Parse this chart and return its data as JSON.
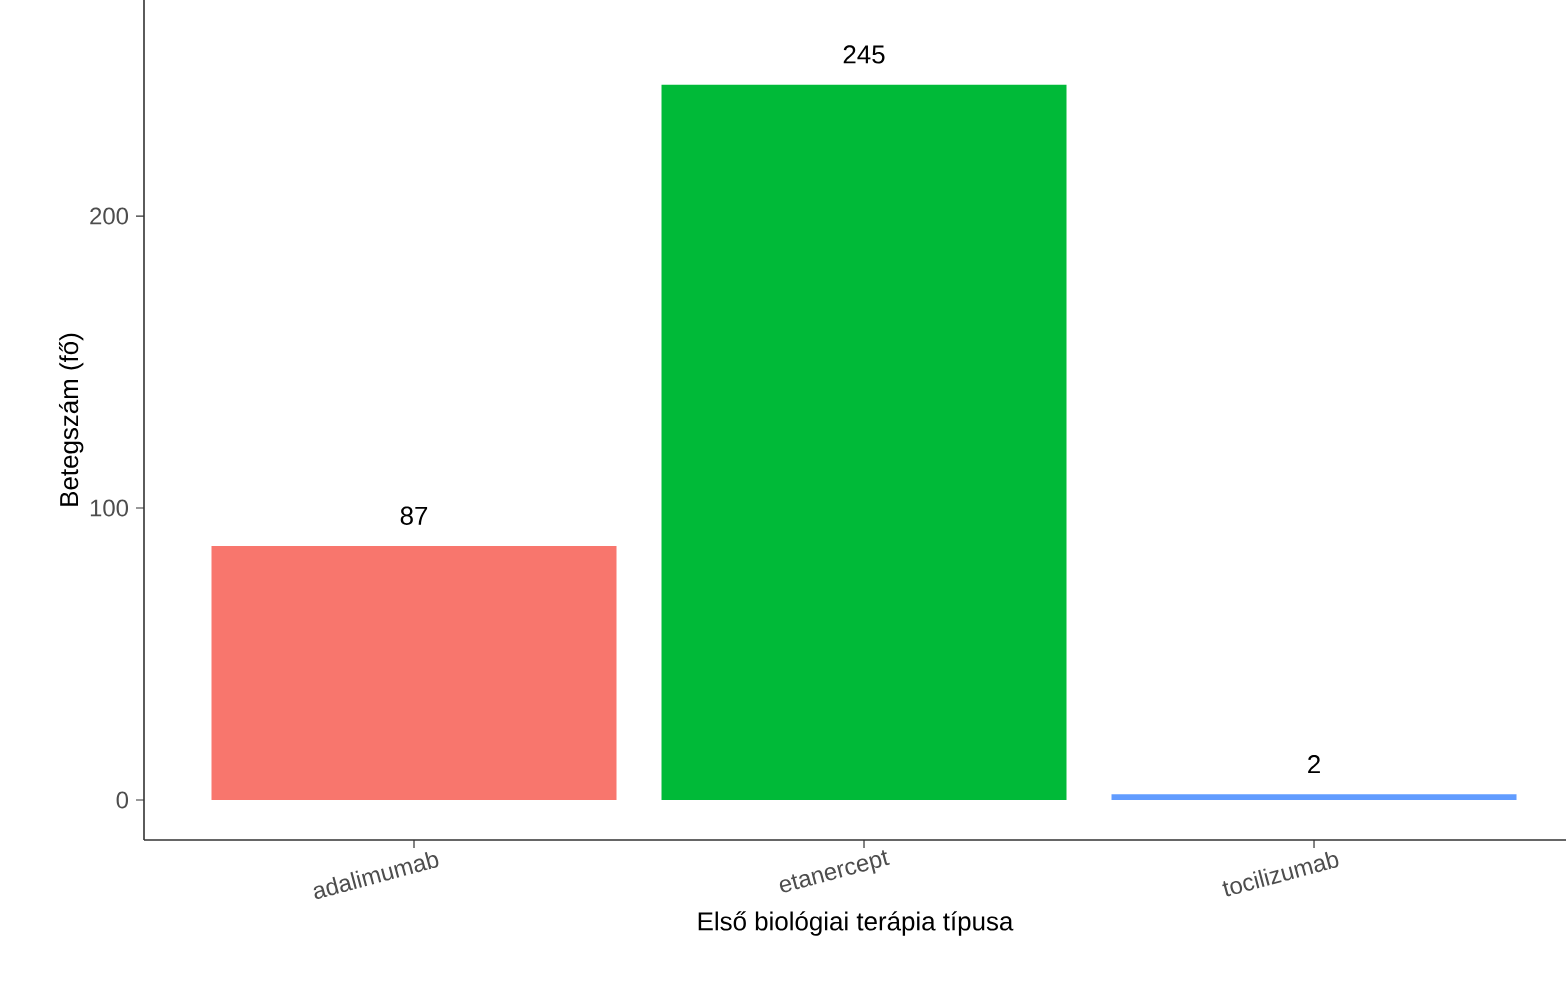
{
  "chart_data": {
    "type": "bar",
    "xlabel": "Első biológiai terápia típusa",
    "ylabel": "Betegszám (fő)",
    "categories": [
      "adalimumab",
      "etanercept",
      "tocilizumab"
    ],
    "values": [
      87,
      245,
      2
    ],
    "colors": [
      "#f8766d",
      "#00ba38",
      "#619cff"
    ],
    "ylim": [
      -13.7,
      274
    ],
    "yticks": [
      0,
      100,
      200
    ],
    "data_labels": true,
    "grid": false
  }
}
